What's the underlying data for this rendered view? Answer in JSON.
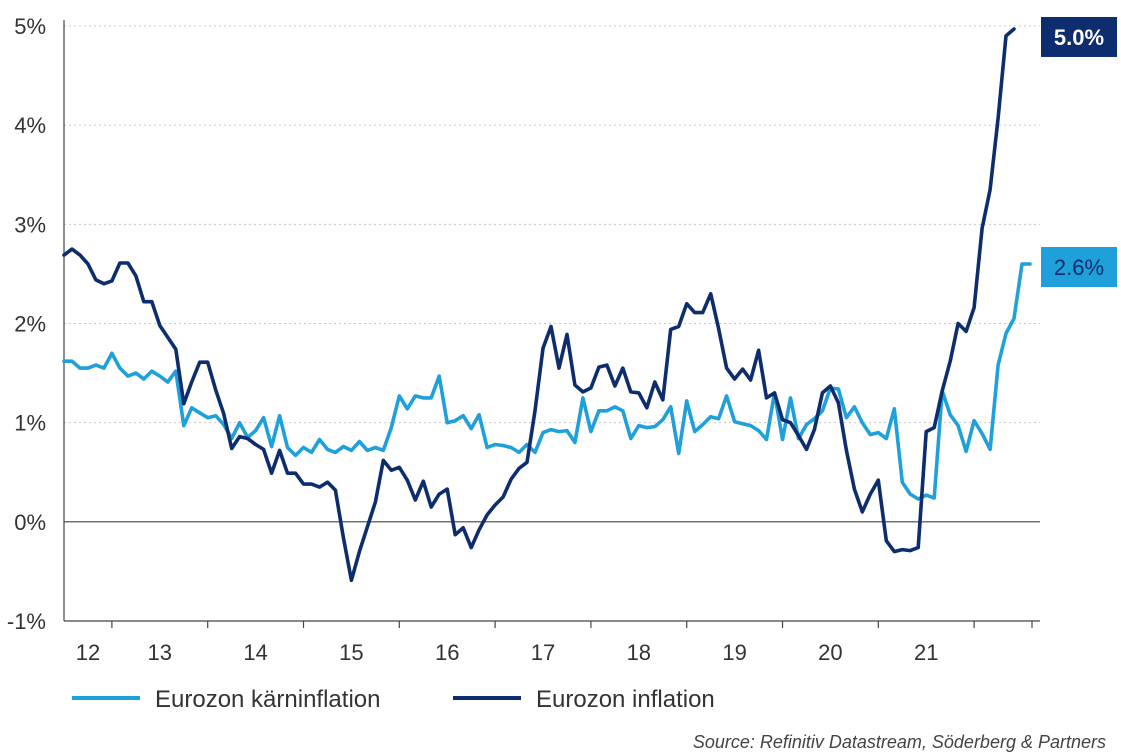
{
  "chart_data": {
    "type": "line",
    "x_start": "2011-07",
    "x_step": "month",
    "x_tick_labels": [
      "12",
      "13",
      "14",
      "15",
      "16",
      "17",
      "18",
      "19",
      "20",
      "21"
    ],
    "y_tick_labels": [
      "5%",
      "4%",
      "3%",
      "2%",
      "1%",
      "0%",
      "-1%"
    ],
    "y_ticks": [
      5,
      4,
      3,
      2,
      1,
      0,
      -1
    ],
    "ylim": [
      -1,
      5
    ],
    "grid": true,
    "legend_position": "bottom-left",
    "source": "Source: Refinitiv Datastream, Söderberg & Partners",
    "series": [
      {
        "name": "Eurozon kärninflation",
        "color": "#1fa0db",
        "end_label": "2.6%",
        "values": [
          1.62,
          1.62,
          1.55,
          1.55,
          1.58,
          1.55,
          1.7,
          1.55,
          1.47,
          1.5,
          1.44,
          1.52,
          1.47,
          1.41,
          1.52,
          0.97,
          1.15,
          1.1,
          1.05,
          1.07,
          0.98,
          0.84,
          1.0,
          0.85,
          0.92,
          1.05,
          0.76,
          1.07,
          0.75,
          0.67,
          0.75,
          0.7,
          0.83,
          0.73,
          0.7,
          0.76,
          0.72,
          0.81,
          0.72,
          0.75,
          0.72,
          0.95,
          1.27,
          1.14,
          1.27,
          1.25,
          1.25,
          1.47,
          1.0,
          1.02,
          1.07,
          0.94,
          1.08,
          0.75,
          0.78,
          0.77,
          0.75,
          0.7,
          0.78,
          0.7,
          0.9,
          0.93,
          0.91,
          0.92,
          0.8,
          1.25,
          0.91,
          1.12,
          1.12,
          1.16,
          1.12,
          0.84,
          0.97,
          0.95,
          0.96,
          1.03,
          1.16,
          0.69,
          1.22,
          0.91,
          0.98,
          1.06,
          1.04,
          1.27,
          1.01,
          0.99,
          0.97,
          0.92,
          0.83,
          1.3,
          0.83,
          1.25,
          0.84,
          0.98,
          1.04,
          1.12,
          1.35,
          1.34,
          1.05,
          1.16,
          1.0,
          0.88,
          0.9,
          0.84,
          1.14,
          0.4,
          0.28,
          0.23,
          0.27,
          0.24,
          1.32,
          1.08,
          0.97,
          0.71,
          1.02,
          0.89,
          0.73,
          1.58,
          1.9,
          2.05,
          2.6,
          2.6
        ]
      },
      {
        "name": "Eurozon inflation",
        "color": "#0d2d6e",
        "end_label": "5.0%",
        "values": [
          2.69,
          2.75,
          2.69,
          2.6,
          2.44,
          2.4,
          2.43,
          2.61,
          2.61,
          2.48,
          2.22,
          2.22,
          1.98,
          1.86,
          1.74,
          1.19,
          1.41,
          1.61,
          1.61,
          1.33,
          1.09,
          0.74,
          0.86,
          0.84,
          0.78,
          0.73,
          0.49,
          0.72,
          0.49,
          0.49,
          0.38,
          0.38,
          0.35,
          0.4,
          0.32,
          -0.16,
          -0.59,
          -0.3,
          -0.05,
          0.2,
          0.62,
          0.52,
          0.55,
          0.42,
          0.22,
          0.41,
          0.15,
          0.28,
          0.33,
          -0.13,
          -0.06,
          -0.26,
          -0.08,
          0.07,
          0.17,
          0.25,
          0.43,
          0.54,
          0.6,
          1.12,
          1.75,
          1.97,
          1.55,
          1.89,
          1.38,
          1.31,
          1.35,
          1.56,
          1.58,
          1.37,
          1.55,
          1.31,
          1.3,
          1.15,
          1.41,
          1.23,
          1.94,
          1.97,
          2.2,
          2.11,
          2.11,
          2.3,
          1.95,
          1.55,
          1.44,
          1.54,
          1.43,
          1.73,
          1.25,
          1.3,
          1.03,
          1.0,
          0.87,
          0.73,
          0.93,
          1.3,
          1.37,
          1.2,
          0.72,
          0.33,
          0.1,
          0.28,
          0.42,
          -0.19,
          -0.3,
          -0.28,
          -0.29,
          -0.26,
          0.91,
          0.95,
          1.32,
          1.62,
          2.0,
          1.92,
          2.16,
          2.96,
          3.35,
          4.07,
          4.9,
          4.97
        ]
      }
    ]
  }
}
